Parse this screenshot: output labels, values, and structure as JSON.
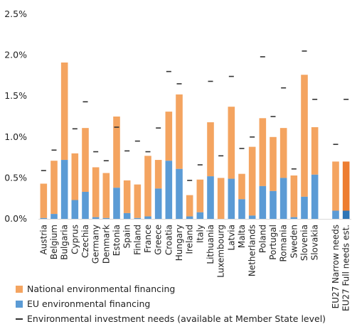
{
  "chart_data": {
    "type": "bar",
    "stacked": true,
    "title": "",
    "xlabel": "",
    "ylabel": "",
    "ylim": [
      0,
      2.5
    ],
    "y_ticks": [
      "0.0%",
      "0.5%",
      "1.0%",
      "1.5%",
      "2.0%",
      "2.5%"
    ],
    "y_tick_values": [
      0,
      0.5,
      1.0,
      1.5,
      2.0,
      2.5
    ],
    "grid": false,
    "legend_position": "bottom-left",
    "categories": [
      "Austria",
      "Belgium",
      "Bulgaria",
      "Cyprus",
      "Czechia",
      "Germany",
      "Denmark",
      "Estonia",
      "Spain",
      "Finland",
      "France",
      "Greece",
      "Croatia",
      "Hungary",
      "Ireland",
      "Italy",
      "Lithuania",
      "Luxembourg",
      "Latvia",
      "Malta",
      "Netherlands",
      "Poland",
      "Portugal",
      "Romania",
      "Sweden",
      "Slovenia",
      "Slovakia",
      "",
      "EU27 Narrow needs",
      "EU27 Full needs est."
    ],
    "series": [
      {
        "name": "EU environmental financing",
        "color": "#5b9bd5",
        "values": [
          0.01,
          0.06,
          0.72,
          0.23,
          0.33,
          0.02,
          0.01,
          0.38,
          0.07,
          0.01,
          0.03,
          0.37,
          0.71,
          0.61,
          0.03,
          0.08,
          0.52,
          0.0,
          0.49,
          0.24,
          0.04,
          0.4,
          0.34,
          0.5,
          0.02,
          0.27,
          0.54,
          null,
          0.1,
          0.1
        ]
      },
      {
        "name": "National environmental financing",
        "color": "#f4a460",
        "values": [
          0.42,
          0.65,
          1.19,
          0.57,
          0.78,
          0.61,
          0.55,
          0.87,
          0.4,
          0.41,
          0.74,
          0.35,
          0.6,
          0.91,
          0.26,
          0.4,
          0.66,
          0.5,
          0.88,
          0.31,
          0.84,
          0.83,
          0.66,
          0.61,
          0.51,
          1.49,
          0.58,
          null,
          0.6,
          0.6
        ]
      }
    ],
    "needs": {
      "name": "Environmental investment needs (available at Member State level)",
      "values": [
        0.59,
        0.84,
        null,
        1.1,
        1.43,
        0.82,
        0.71,
        1.12,
        0.83,
        0.95,
        0.82,
        1.11,
        1.8,
        1.65,
        0.47,
        0.66,
        1.68,
        0.77,
        1.74,
        0.86,
        1.0,
        1.98,
        1.25,
        1.6,
        0.61,
        2.05,
        1.46,
        null,
        0.91,
        1.46
      ]
    },
    "highlight": {
      "category_index": 29,
      "eu_color": "#2e75b6",
      "national_color": "#ed7d31"
    }
  },
  "legend": {
    "items": [
      {
        "label": "National environmental financing",
        "kind": "swatch",
        "color": "#f4a460"
      },
      {
        "label": "EU environmental financing",
        "kind": "swatch",
        "color": "#5b9bd5"
      },
      {
        "label": "Environmental investment needs (available at Member State level)",
        "kind": "dash",
        "color": "#333333"
      }
    ]
  }
}
